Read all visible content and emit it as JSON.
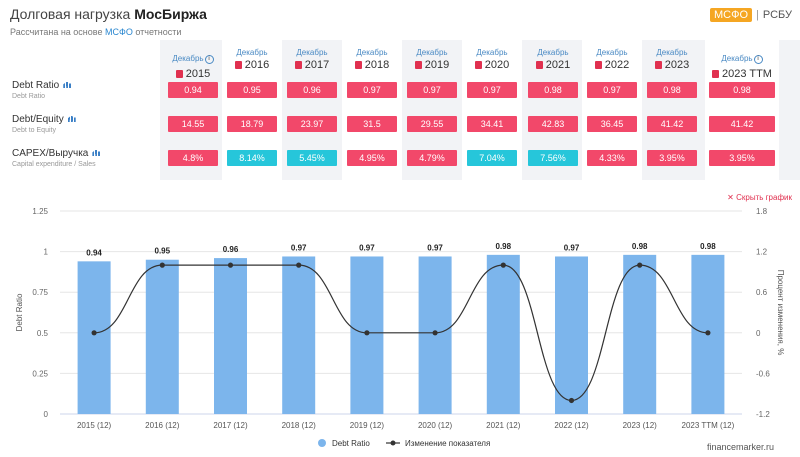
{
  "header": {
    "title_prefix": "Долговая нагрузка",
    "title_company": "МосБиржа",
    "subtitle_prefix": "Рассчитана на основе",
    "subtitle_accent": "МСФО",
    "subtitle_suffix": "отчетности",
    "std_active": "МСФО",
    "std_sep": "|",
    "std_inactive": "РСБУ"
  },
  "columns": [
    {
      "label": "Декабрь",
      "year": "2015",
      "info": true
    },
    {
      "label": "Декабрь",
      "year": "2016",
      "info": false
    },
    {
      "label": "Декабрь",
      "year": "2017",
      "info": false
    },
    {
      "label": "Декабрь",
      "year": "2018",
      "info": false
    },
    {
      "label": "Декабрь",
      "year": "2019",
      "info": false
    },
    {
      "label": "Декабрь",
      "year": "2020",
      "info": false
    },
    {
      "label": "Декабрь",
      "year": "2021",
      "info": false
    },
    {
      "label": "Декабрь",
      "year": "2022",
      "info": false
    },
    {
      "label": "Декабрь",
      "year": "2023",
      "info": false
    },
    {
      "label": "Декабрь",
      "year": "2023 TTM",
      "info": true
    }
  ],
  "rows": [
    {
      "name": "Debt Ratio",
      "sub": "Debt Ratio",
      "values": [
        "0.94",
        "0.95",
        "0.96",
        "0.97",
        "0.97",
        "0.97",
        "0.98",
        "0.97",
        "0.98",
        "0.98"
      ],
      "colors": [
        "red",
        "red",
        "red",
        "red",
        "red",
        "red",
        "red",
        "red",
        "red",
        "red"
      ]
    },
    {
      "name": "Debt/Equity",
      "sub": "Debt to Equity",
      "values": [
        "14.55",
        "18.79",
        "23.97",
        "31.5",
        "29.55",
        "34.41",
        "42.83",
        "36.45",
        "41.42",
        "41.42"
      ],
      "colors": [
        "red",
        "red",
        "red",
        "red",
        "red",
        "red",
        "red",
        "red",
        "red",
        "red"
      ]
    },
    {
      "name": "CAPEX/Выручка",
      "sub": "Capital expenditure / Sales",
      "values": [
        "4.8%",
        "8.14%",
        "5.45%",
        "4.95%",
        "4.79%",
        "7.04%",
        "7.56%",
        "4.33%",
        "3.95%",
        "3.95%"
      ],
      "colors": [
        "red",
        "teal",
        "teal",
        "red",
        "red",
        "teal",
        "teal",
        "red",
        "red",
        "red"
      ]
    }
  ],
  "colors": {
    "red": "#f2486a",
    "teal": "#26c6da",
    "bar": "#7cb5ec",
    "line": "#333333"
  },
  "chart_controls": {
    "hide_label": "Скрыть график"
  },
  "watermark": "financemarker.ru",
  "chart_data": {
    "type": "bar",
    "categories": [
      "2015 (12)",
      "2016 (12)",
      "2017 (12)",
      "2018 (12)",
      "2019 (12)",
      "2020 (12)",
      "2021 (12)",
      "2022 (12)",
      "2023 (12)",
      "2023 TTM (12)"
    ],
    "series": [
      {
        "name": "Debt Ratio",
        "type": "bar",
        "axis": "left",
        "values": [
          0.94,
          0.95,
          0.96,
          0.97,
          0.97,
          0.97,
          0.98,
          0.97,
          0.98,
          0.98
        ]
      },
      {
        "name": "Изменение показателя",
        "type": "line",
        "axis": "right",
        "values": [
          0,
          1.0,
          1.0,
          1.0,
          0,
          0,
          1.0,
          -1.0,
          1.0,
          0
        ]
      }
    ],
    "ylabel": "Debt Ratio",
    "ylabel_right": "Процент изменения, %",
    "ylim": [
      0,
      1.25
    ],
    "yticks": [
      "0",
      "0.25",
      "0.5",
      "0.75",
      "1",
      "1.25"
    ],
    "ylim_right": [
      -1.2,
      1.8
    ],
    "yticks_right": [
      "-1.2",
      "-0.6",
      "0",
      "0.6",
      "1.2",
      "1.8"
    ],
    "data_labels": [
      "0.94",
      "0.95",
      "0.96",
      "0.97",
      "0.97",
      "0.97",
      "0.98",
      "0.97",
      "0.98",
      "0.98"
    ],
    "legend_position": "bottom-center"
  }
}
